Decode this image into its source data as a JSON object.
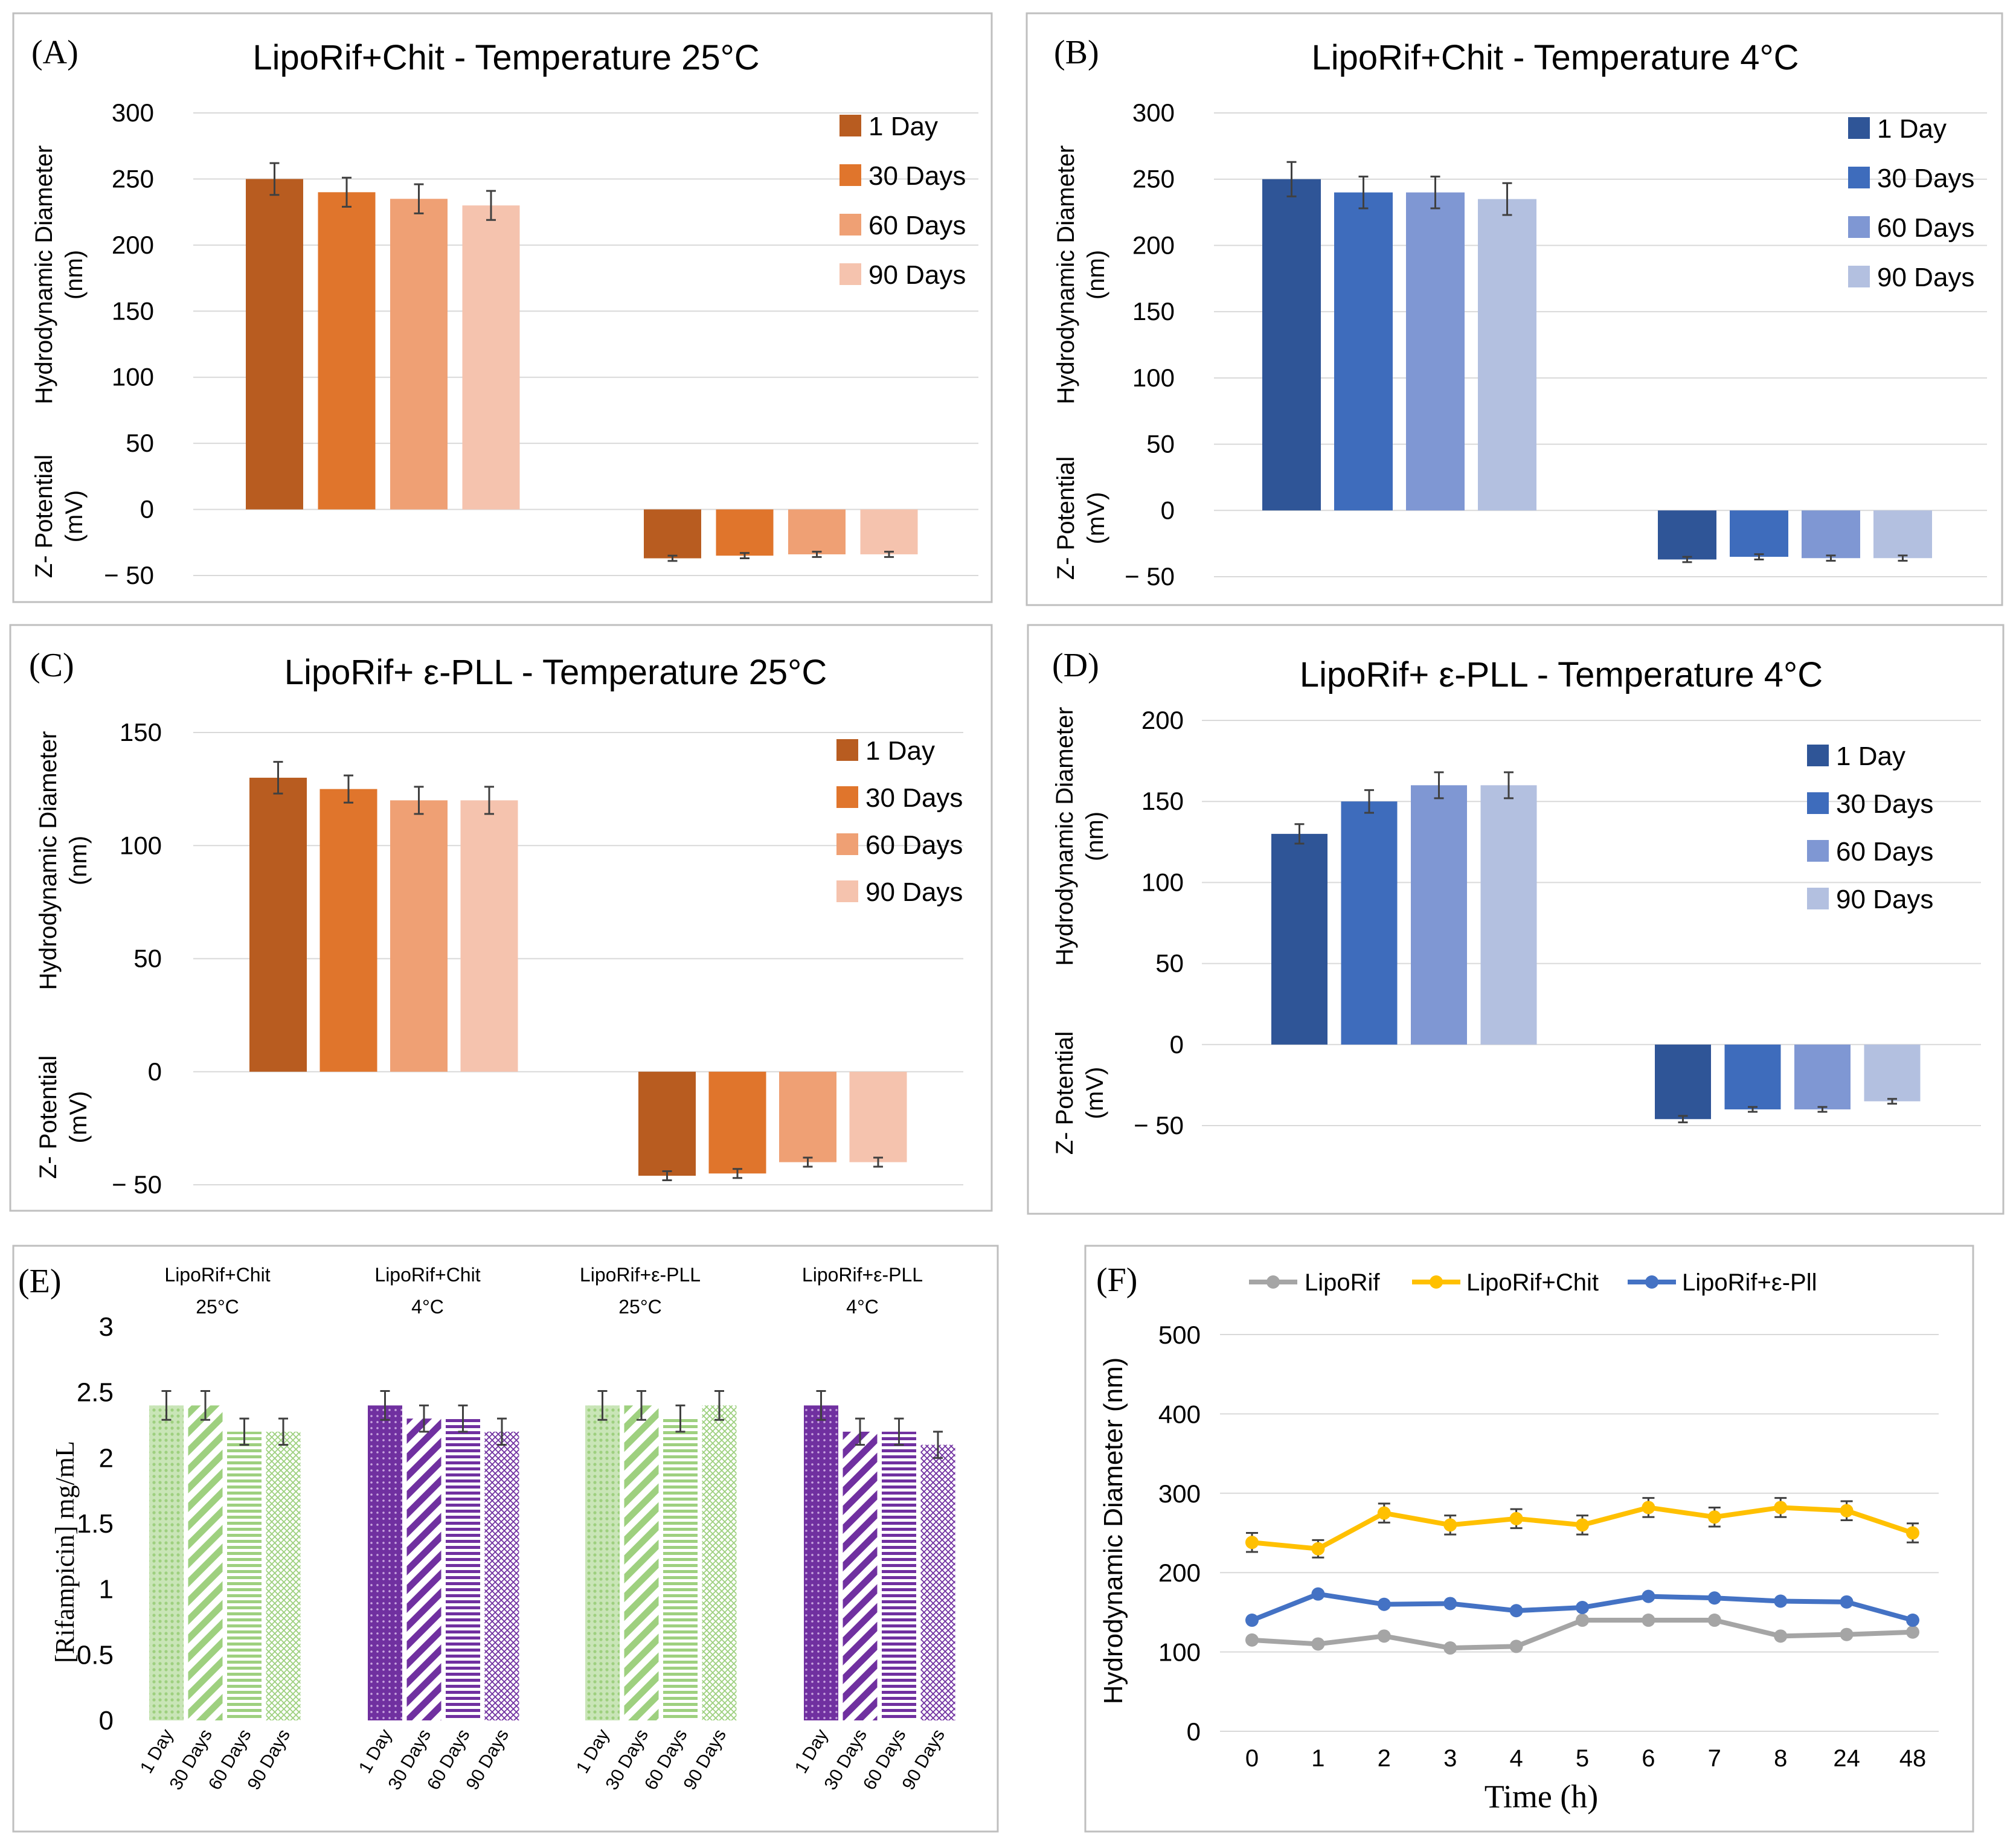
{
  "colors": {
    "orange": [
      "#b85c20",
      "#e0752c",
      "#efa074",
      "#f5c3ae"
    ],
    "blue": [
      "#2f5597",
      "#3e6cbc",
      "#7f97d3",
      "#b3c0e0"
    ],
    "green": "#9ed07f",
    "purple": "#7030a0",
    "line_gray": "#a5a5a5",
    "line_yellow": "#ffc000",
    "line_blue": "#4472c4",
    "grid": "#d9d9d9",
    "frame": "#bfbfbf"
  },
  "chart_data": [
    {
      "panel": "(A)",
      "type": "bar",
      "title": "LipoRif+Chit - Temperature 25°C",
      "ylabel_top": "Hydrodynamic Diameter",
      "ylabel_top_unit": "(nm)",
      "ylabel_bottom": "Z- Potential",
      "ylabel_bottom_unit": "(mV)",
      "ylim": [
        -50,
        300
      ],
      "yticks": [
        "300",
        "250",
        "200",
        "150",
        "100",
        "50",
        "0",
        "− 50"
      ],
      "ytick_values": [
        300,
        250,
        200,
        150,
        100,
        50,
        0,
        -50
      ],
      "legend": [
        "1 Day",
        "30 Days",
        "60 Days",
        "90 Days"
      ],
      "palette": "orange",
      "groups": [
        {
          "name": "Hydrodynamic Diameter",
          "values": [
            250,
            240,
            235,
            230
          ],
          "errors": [
            12,
            11,
            11,
            11
          ]
        },
        {
          "name": "Z-Potential",
          "values": [
            -37,
            -35,
            -34,
            -34
          ],
          "errors": [
            2,
            2,
            2,
            2
          ]
        }
      ]
    },
    {
      "panel": "(B)",
      "type": "bar",
      "title": "LipoRif+Chit  - Temperature 4°C",
      "ylabel_top": "Hydrodynamic Diameter",
      "ylabel_top_unit": "(nm)",
      "ylabel_bottom": "Z- Potential",
      "ylabel_bottom_unit": "(mV)",
      "ylim": [
        -50,
        300
      ],
      "yticks": [
        "300",
        "250",
        "200",
        "150",
        "100",
        "50",
        "0",
        "− 50"
      ],
      "ytick_values": [
        300,
        250,
        200,
        150,
        100,
        50,
        0,
        -50
      ],
      "legend": [
        "1 Day",
        "30 Days",
        "60 Days",
        "90 Days"
      ],
      "palette": "blue",
      "groups": [
        {
          "name": "Hydrodynamic Diameter",
          "values": [
            250,
            240,
            240,
            235
          ],
          "errors": [
            13,
            12,
            12,
            12
          ]
        },
        {
          "name": "Z-Potential",
          "values": [
            -37,
            -35,
            -36,
            -36
          ],
          "errors": [
            2,
            2,
            2,
            2
          ]
        }
      ]
    },
    {
      "panel": "(C)",
      "type": "bar",
      "title": "LipoRif+ ε-PLL  - Temperature 25°C",
      "ylabel_top": "Hydrodynamic Diameter",
      "ylabel_top_unit": "(nm)",
      "ylabel_bottom": "Z- Potential",
      "ylabel_bottom_unit": "(mV)",
      "ylim": [
        -50,
        150
      ],
      "yticks": [
        "150",
        "100",
        "50",
        "0",
        "− 50"
      ],
      "ytick_values": [
        150,
        100,
        50,
        0,
        -50
      ],
      "legend": [
        "1 Day",
        "30 Days",
        "60 Days",
        "90 Days"
      ],
      "palette": "orange",
      "groups": [
        {
          "name": "Hydrodynamic Diameter",
          "values": [
            130,
            125,
            120,
            120
          ],
          "errors": [
            7,
            6,
            6,
            6
          ]
        },
        {
          "name": "Z-Potential",
          "values": [
            -46,
            -45,
            -40,
            -40
          ],
          "errors": [
            2,
            2,
            2,
            2
          ]
        }
      ]
    },
    {
      "panel": "(D)",
      "type": "bar",
      "title": "LipoRif+ ε-PLL - Temperature 4°C",
      "ylabel_top": "Hydrodynamic Diameter",
      "ylabel_top_unit": "(nm)",
      "ylabel_bottom": "Z- Potential",
      "ylabel_bottom_unit": "(mV)",
      "ylim": [
        -50,
        200
      ],
      "yticks": [
        "200",
        "150",
        "100",
        "50",
        "0",
        "− 50"
      ],
      "ytick_values": [
        200,
        150,
        100,
        50,
        0,
        -50
      ],
      "legend": [
        "1 Day",
        "30 Days",
        "60 Days",
        "90 Days"
      ],
      "palette": "blue",
      "groups": [
        {
          "name": "Hydrodynamic Diameter",
          "values": [
            130,
            150,
            160,
            160
          ],
          "errors": [
            6,
            7,
            8,
            8
          ]
        },
        {
          "name": "Z-Potential",
          "values": [
            -46,
            -40,
            -40,
            -35
          ],
          "errors": [
            2,
            1.5,
            1.5,
            1.5
          ]
        }
      ]
    },
    {
      "panel": "(E)",
      "type": "bar",
      "ylabel": "[Rifampicin] mg/mL",
      "ylim": [
        0,
        3
      ],
      "yticks": [
        "3",
        "2.5",
        "2",
        "1.5",
        "1",
        "0.5",
        "0"
      ],
      "ytick_values": [
        3,
        2.5,
        2,
        1.5,
        1,
        0.5,
        0
      ],
      "category_labels": [
        "1 Day",
        "30 Days",
        "60 Days",
        "90 Days"
      ],
      "groups": [
        {
          "name_line1": "LipoRif+Chit",
          "name_line2": "25°C",
          "color": "green",
          "values": [
            2.4,
            2.4,
            2.2,
            2.2
          ],
          "errors": [
            0.11,
            0.11,
            0.1,
            0.1
          ]
        },
        {
          "name_line1": "LipoRif+Chit",
          "name_line2": "4°C",
          "color": "purple",
          "values": [
            2.4,
            2.3,
            2.3,
            2.2
          ],
          "errors": [
            0.11,
            0.1,
            0.1,
            0.1
          ]
        },
        {
          "name_line1": "LipoRif+ε-PLL",
          "name_line2": "25°C",
          "color": "green",
          "values": [
            2.4,
            2.4,
            2.3,
            2.4
          ],
          "errors": [
            0.11,
            0.11,
            0.1,
            0.11
          ]
        },
        {
          "name_line1": "LipoRif+ε-PLL",
          "name_line2": "4°C",
          "color": "purple",
          "values": [
            2.4,
            2.2,
            2.2,
            2.1
          ],
          "errors": [
            0.11,
            0.1,
            0.1,
            0.1
          ]
        }
      ]
    },
    {
      "panel": "(F)",
      "type": "line",
      "xlabel": "Time (h)",
      "ylabel": "Hydrodynamic Diameter (nm)",
      "ylim": [
        0,
        500
      ],
      "yticks": [
        "500",
        "400",
        "300",
        "200",
        "100",
        "0"
      ],
      "ytick_values": [
        500,
        400,
        300,
        200,
        100,
        0
      ],
      "x": [
        "0",
        "1",
        "2",
        "3",
        "4",
        "5",
        "6",
        "7",
        "8",
        "24",
        "48"
      ],
      "series": [
        {
          "name": "LipoRif",
          "color": "line_gray",
          "values": [
            115,
            110,
            120,
            105,
            107,
            140,
            140,
            140,
            120,
            122,
            125
          ],
          "errors": [
            0,
            0,
            0,
            0,
            0,
            0,
            0,
            0,
            0,
            0,
            0
          ]
        },
        {
          "name": "LipoRif+Chit",
          "color": "line_yellow",
          "values": [
            238,
            230,
            275,
            260,
            268,
            260,
            282,
            270,
            282,
            278,
            250
          ],
          "errors": [
            12,
            11,
            12,
            12,
            12,
            12,
            12,
            12,
            12,
            12,
            12
          ]
        },
        {
          "name": "LipoRif+ε-Pll",
          "color": "line_blue",
          "values": [
            140,
            173,
            160,
            161,
            152,
            156,
            170,
            168,
            164,
            163,
            140
          ],
          "errors": [
            0,
            0,
            0,
            0,
            0,
            0,
            0,
            0,
            0,
            0,
            0
          ]
        }
      ]
    }
  ]
}
